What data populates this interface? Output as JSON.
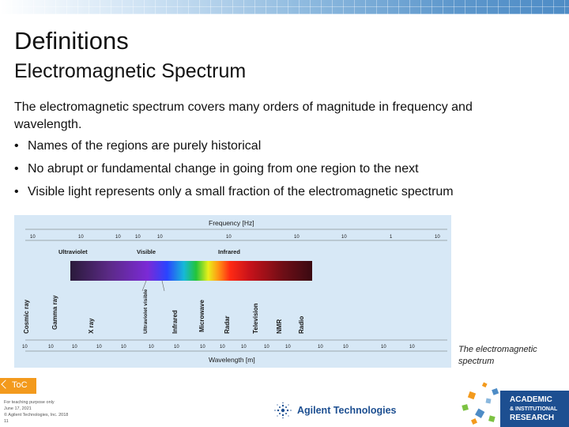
{
  "slide": {
    "title": "Definitions",
    "subtitle": "Electromagnetic Spectrum",
    "intro": "The electromagnetic spectrum covers many orders of magnitude in frequency and wavelength.",
    "bullets": [
      "Names of the regions are purely historical",
      "No abrupt or fundamental change in going from one region to the next",
      "Visible light represents only a small fraction of the electromagnetic spectrum"
    ],
    "bullet_symbol": "•"
  },
  "figure": {
    "frequency_axis_title": "Frequency [Hz]",
    "wavelength_axis_title": "Wavelength [m]",
    "band_labels": [
      "Ultraviolet",
      "Visible",
      "Infrared"
    ],
    "region_labels": [
      "Cosmic ray",
      "Gamma ray",
      "X ray",
      "Ultraviolet visible",
      "Infrared",
      "Microwave",
      "Radar",
      "Television",
      "NMR",
      "Radio"
    ],
    "caption": "The electromagnetic spectrum",
    "colors": {
      "background": "#d7e8f6",
      "text": "#1a1a1a"
    }
  },
  "footer": {
    "toc_label": "ToC",
    "notes": [
      "For teaching purpose only",
      "June 17, 2021",
      "© Agilent Technologies, Inc. 2018",
      "11"
    ],
    "company_name": "Agilent Technologies",
    "badge_line1": "ACADEMIC",
    "badge_line2": "& INSTITUTIONAL",
    "badge_line3": "RESEARCH",
    "colors": {
      "toc": "#f39a1d",
      "brand": "#1d4f91"
    }
  }
}
